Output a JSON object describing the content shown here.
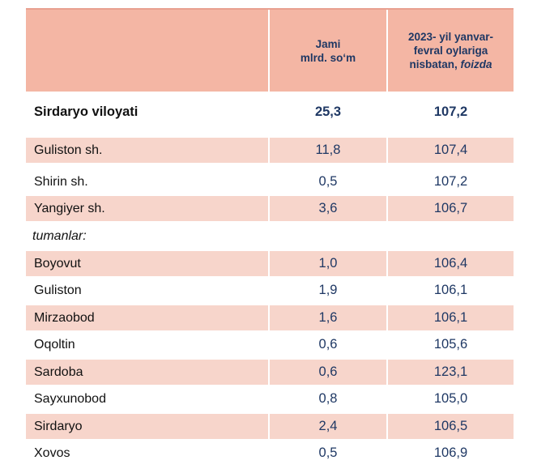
{
  "header": {
    "col2_line1": "Jami",
    "col2_line2": "mlrd. so‘m",
    "col3_line1": "2023- yil yanvar-",
    "col3_line2": "fevral oylariga",
    "col3_line3_a": "nisbatan, ",
    "col3_line3_b": "foizda"
  },
  "rows": [
    {
      "name": "Sirdaryo viloyati",
      "total": "25,3",
      "pct": "107,2"
    },
    {
      "name": "Guliston  sh.",
      "total": "11,8",
      "pct": "107,4"
    },
    {
      "name": "Shirin sh.",
      "total": "0,5",
      "pct": "107,2"
    },
    {
      "name": "Yangiyer sh.",
      "total": "3,6",
      "pct": "106,7"
    },
    {
      "name": "tumanlar:",
      "total": "",
      "pct": ""
    },
    {
      "name": "Boyovut",
      "total": "1,0",
      "pct": "106,4"
    },
    {
      "name": "Guliston",
      "total": "1,9",
      "pct": "106,1"
    },
    {
      "name": "Mirzaobod",
      "total": "1,6",
      "pct": "106,1"
    },
    {
      "name": "Oqoltin",
      "total": "0,6",
      "pct": "105,6"
    },
    {
      "name": "Sardoba",
      "total": "0,6",
      "pct": "123,1"
    },
    {
      "name": "Sayxunobod",
      "total": "0,8",
      "pct": "105,0"
    },
    {
      "name": "Sirdaryo",
      "total": "2,4",
      "pct": "106,5"
    },
    {
      "name": "Xovos",
      "total": "0,5",
      "pct": "106,9"
    }
  ],
  "colors": {
    "header_bg": "#f4b6a4",
    "row_shade": "#f7d5cb",
    "value_text": "#1f3864"
  }
}
